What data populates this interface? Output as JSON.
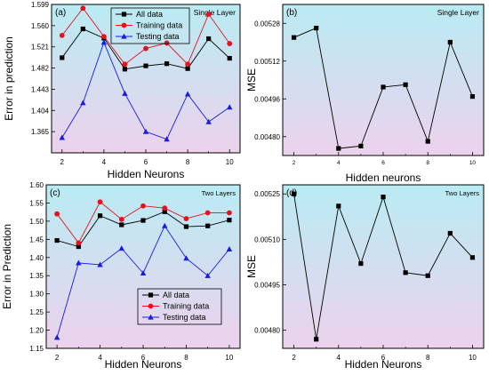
{
  "chart_data": [
    {
      "panel": "(a)",
      "type": "line",
      "corner_label": "Single Layer",
      "xlabel": "Hidden Neurons",
      "ylabel": "Error in prediction",
      "xlim": [
        1.5,
        10.5
      ],
      "ylim": [
        1.326,
        1.599
      ],
      "xticks": [
        2,
        4,
        6,
        8,
        10
      ],
      "yticks": [
        1.365,
        1.404,
        1.443,
        1.482,
        1.521,
        1.56,
        1.599
      ],
      "ytick_labels": [
        "1.365",
        "1.404",
        "1.443",
        "1.482",
        "1.521",
        "1.560",
        "1.599"
      ],
      "grid": false,
      "legend": "top-center",
      "x": [
        2,
        3,
        4,
        5,
        6,
        7,
        8,
        9,
        10
      ],
      "series": [
        {
          "name": "All data",
          "color": "#000000",
          "marker": "square",
          "values": [
            1.501,
            1.554,
            1.537,
            1.48,
            1.486,
            1.49,
            1.481,
            1.536,
            1.5
          ]
        },
        {
          "name": "Training data",
          "color": "#e8101d",
          "marker": "circle",
          "values": [
            1.542,
            1.592,
            1.54,
            1.489,
            1.518,
            1.528,
            1.489,
            1.581,
            1.527
          ]
        },
        {
          "name": "Testing data",
          "color": "#1a1ae6",
          "marker": "triangle",
          "values": [
            1.354,
            1.418,
            1.529,
            1.435,
            1.365,
            1.351,
            1.434,
            1.383,
            1.41
          ]
        }
      ]
    },
    {
      "panel": "(b)",
      "type": "line",
      "corner_label": "Single Layer",
      "xlabel": "Hidden neurons",
      "ylabel": "MSE",
      "xlim": [
        1.5,
        10.5
      ],
      "ylim": [
        0.00472,
        0.00536
      ],
      "xticks": [
        2,
        4,
        6,
        8,
        10
      ],
      "yticks": [
        0.0048,
        0.00496,
        0.00512,
        0.00528
      ],
      "ytick_labels": [
        "0.00480",
        "0.00496",
        "0.00512",
        "0.00528"
      ],
      "grid": false,
      "legend": "none",
      "x": [
        2,
        3,
        4,
        5,
        6,
        7,
        8,
        9,
        10
      ],
      "series": [
        {
          "color": "#000000",
          "marker": "square",
          "values": [
            0.00522,
            0.00526,
            0.00475,
            0.00476,
            0.00501,
            0.00502,
            0.00478,
            0.0052,
            0.00497
          ]
        }
      ]
    },
    {
      "panel": "(c)",
      "type": "line",
      "corner_label": "Two Layers",
      "xlabel": "Hidden Neurons",
      "ylabel": "Error in Prediction",
      "xlim": [
        1.5,
        10.5
      ],
      "ylim": [
        1.15,
        1.6
      ],
      "xticks": [
        2,
        4,
        6,
        8,
        10
      ],
      "yticks": [
        1.15,
        1.2,
        1.25,
        1.3,
        1.35,
        1.4,
        1.45,
        1.5,
        1.55,
        1.6
      ],
      "ytick_labels": [
        "1.15",
        "1.20",
        "1.25",
        "1.30",
        "1.35",
        "1.40",
        "1.45",
        "1.50",
        "1.55",
        "1.60"
      ],
      "grid": false,
      "legend": "bottom-center",
      "x": [
        2,
        3,
        4,
        5,
        6,
        7,
        8,
        9,
        10
      ],
      "series": [
        {
          "name": "All data",
          "color": "#000000",
          "marker": "square",
          "values": [
            1.447,
            1.43,
            1.515,
            1.49,
            1.502,
            1.526,
            1.485,
            1.487,
            1.503
          ]
        },
        {
          "name": "Training data",
          "color": "#e8101d",
          "marker": "circle",
          "values": [
            1.52,
            1.44,
            1.553,
            1.505,
            1.542,
            1.536,
            1.507,
            1.523,
            1.523
          ]
        },
        {
          "name": "Testing data",
          "color": "#1a1ae6",
          "marker": "triangle",
          "values": [
            1.18,
            1.385,
            1.38,
            1.425,
            1.357,
            1.487,
            1.398,
            1.35,
            1.423
          ]
        }
      ]
    },
    {
      "panel": "(d)",
      "type": "line",
      "corner_label": "Two Layers",
      "xlabel": "Hidden Neurons",
      "ylabel": "MSE",
      "xlim": [
        1.5,
        10.5
      ],
      "ylim": [
        0.00474,
        0.00528
      ],
      "xticks": [
        2,
        4,
        6,
        8,
        10
      ],
      "yticks": [
        0.0048,
        0.00495,
        0.0051,
        0.00525
      ],
      "ytick_labels": [
        "0.00480",
        "0.00495",
        "0.00510",
        "0.00525"
      ],
      "grid": false,
      "legend": "none",
      "x": [
        2,
        3,
        4,
        5,
        6,
        7,
        8,
        9,
        10
      ],
      "series": [
        {
          "color": "#000000",
          "marker": "square",
          "values": [
            0.00525,
            0.00477,
            0.00521,
            0.00502,
            0.00524,
            0.00499,
            0.00498,
            0.00512,
            0.00504
          ]
        }
      ]
    }
  ]
}
